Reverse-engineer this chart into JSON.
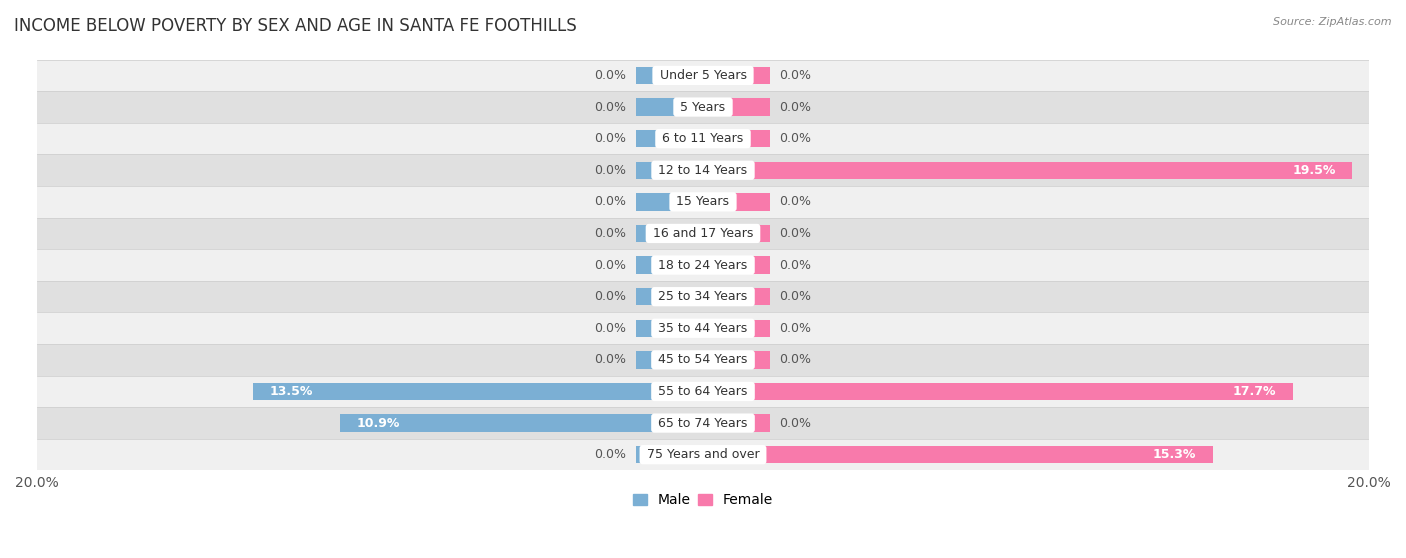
{
  "title": "INCOME BELOW POVERTY BY SEX AND AGE IN SANTA FE FOOTHILLS",
  "source": "Source: ZipAtlas.com",
  "categories": [
    "Under 5 Years",
    "5 Years",
    "6 to 11 Years",
    "12 to 14 Years",
    "15 Years",
    "16 and 17 Years",
    "18 to 24 Years",
    "25 to 34 Years",
    "35 to 44 Years",
    "45 to 54 Years",
    "55 to 64 Years",
    "65 to 74 Years",
    "75 Years and over"
  ],
  "male": [
    0.0,
    0.0,
    0.0,
    0.0,
    0.0,
    0.0,
    0.0,
    0.0,
    0.0,
    0.0,
    13.5,
    10.9,
    0.0
  ],
  "female": [
    0.0,
    0.0,
    0.0,
    19.5,
    0.0,
    0.0,
    0.0,
    0.0,
    0.0,
    0.0,
    17.7,
    0.0,
    15.3
  ],
  "male_color": "#7bafd4",
  "female_color": "#f87aab",
  "male_color_dark": "#5b9ac4",
  "female_color_dark": "#e8609b",
  "row_bg_colors": [
    "#f0f0f0",
    "#e0e0e0"
  ],
  "xlim": 20.0,
  "bar_height": 0.55,
  "stub_value": 2.0,
  "title_fontsize": 12,
  "axis_fontsize": 10,
  "label_fontsize": 9,
  "category_fontsize": 9
}
